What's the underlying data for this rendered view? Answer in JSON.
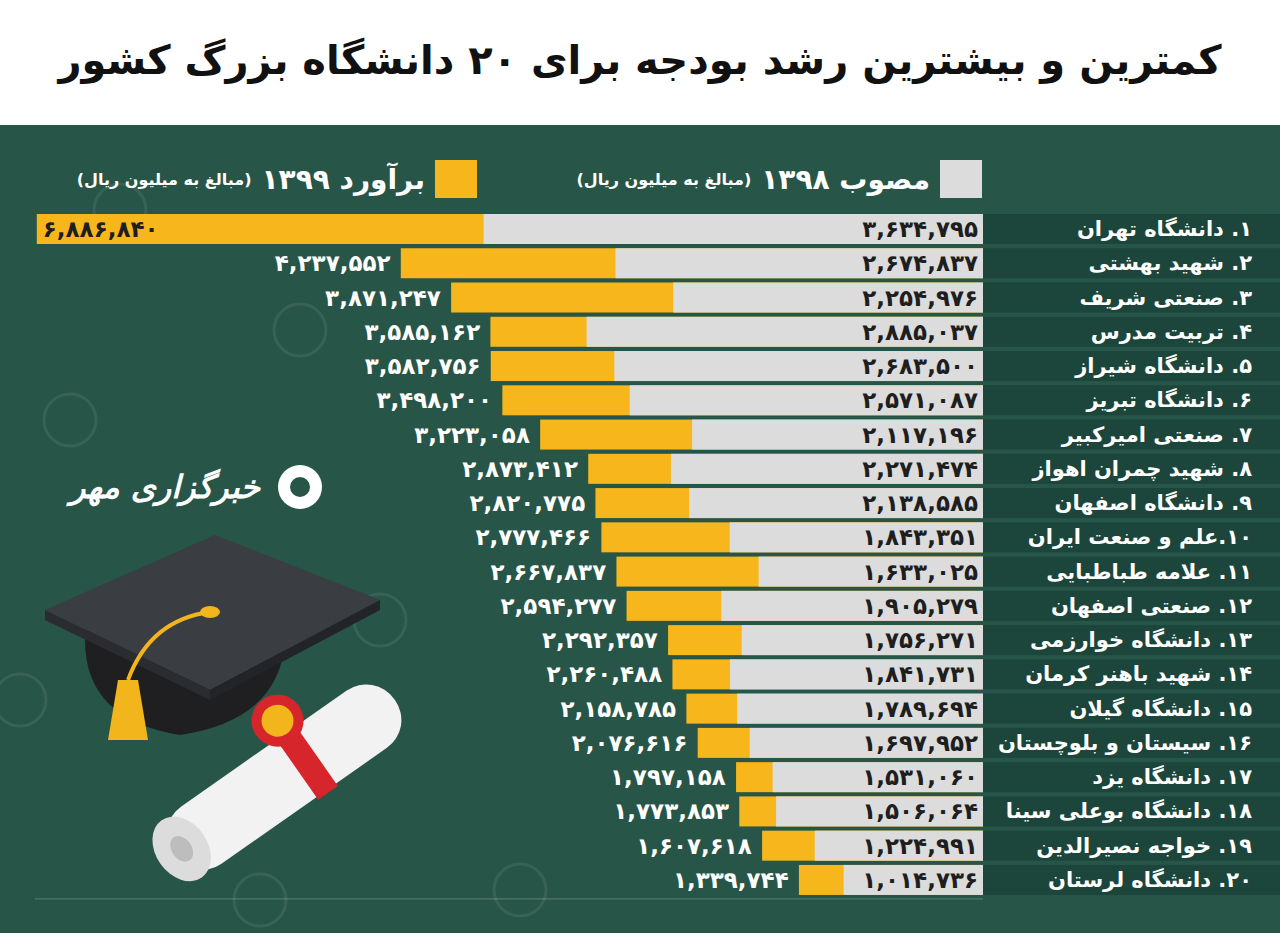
{
  "chart_data": {
    "type": "bar",
    "title": "کمترین و بیشترین رشد بودجه برای ۲۰ دانشگاه بزرگ کشور",
    "annotations": [
      "(مبالغ به میلیون ریال)",
      "خبرگزاری مهر"
    ],
    "orientation": "horizontal",
    "stacked": false,
    "data_labels": true,
    "tick_labels": false,
    "grid": false,
    "legend": "top",
    "xlim": [
      0,
      6900000
    ],
    "categories": [
      "۱. دانشگاه تهران",
      "۲. شهید بهشتی",
      "۳. صنعتی شریف",
      "۴. تربیت مدرس",
      "۵. دانشگاه شیراز",
      "۶. دانشگاه تبریز",
      "۷. صنعتی امیرکبیر",
      "۸. شهید چمران اهواز",
      "۹. دانشگاه اصفهان",
      "۱۰.علم و صنعت ایران",
      "۱۱. علامه طباطبایی",
      "۱۲. صنعتی اصفهان",
      "۱۳. دانشگاه خوارزمی",
      "۱۴. شهید باهنر کرمان",
      "۱۵. دانشگاه گیلان",
      "۱۶. سیستان و بلوچستان",
      "۱۷. دانشگاه یزد",
      "۱۸. دانشگاه بوعلی سینا",
      "۱۹. خواجه نصیرالدین",
      "۲۰. دانشگاه لرستان"
    ],
    "series": [
      {
        "name": "مصوب ۱۳۹۸",
        "color": "#dcdcdc",
        "values": [
          3634795,
          2674837,
          2254976,
          2885037,
          2683500,
          2571087,
          2117196,
          2271474,
          2138585,
          1843351,
          1633025,
          1905279,
          1756271,
          1841731,
          1789694,
          1697952,
          1531060,
          1506064,
          1224991,
          1014736
        ],
        "value_labels": [
          "۳,۶۳۴,۷۹۵",
          "۲,۶۷۴,۸۳۷",
          "۲,۲۵۴,۹۷۶",
          "۲,۸۸۵,۰۳۷",
          "۲,۶۸۳,۵۰۰",
          "۲,۵۷۱,۰۸۷",
          "۲,۱۱۷,۱۹۶",
          "۲,۲۷۱,۴۷۴",
          "۲,۱۳۸,۵۸۵",
          "۱,۸۴۳,۳۵۱",
          "۱,۶۳۳,۰۲۵",
          "۱,۹۰۵,۲۷۹",
          "۱,۷۵۶,۲۷۱",
          "۱,۸۴۱,۷۳۱",
          "۱,۷۸۹,۶۹۴",
          "۱,۶۹۷,۹۵۲",
          "۱,۵۳۱,۰۶۰",
          "۱,۵۰۶,۰۶۴",
          "۱,۲۲۴,۹۹۱",
          "۱,۰۱۴,۷۳۶"
        ]
      },
      {
        "name": "برآورد ۱۳۹۹",
        "color": "#f7b71c",
        "values": [
          6886840,
          4237552,
          3871247,
          3585162,
          3582756,
          3498200,
          3223058,
          2873412,
          2820775,
          2777466,
          2667837,
          2594277,
          2292357,
          2260488,
          2158785,
          2076616,
          1797158,
          1773853,
          1607618,
          1339744
        ],
        "value_labels": [
          "۶,۸۸۶,۸۴۰",
          "۴,۲۳۷,۵۵۲",
          "۳,۸۷۱,۲۴۷",
          "۳,۵۸۵,۱۶۲",
          "۳,۵۸۲,۷۵۶",
          "۳,۴۹۸,۲۰۰",
          "۳,۲۲۳,۰۵۸",
          "۲,۸۷۳,۴۱۲",
          "۲,۸۲۰,۷۷۵",
          "۲,۷۷۷,۴۶۶",
          "۲,۶۶۷,۸۳۷",
          "۲,۵۹۴,۲۷۷",
          "۲,۲۹۲,۳۵۷",
          "۲,۲۶۰,۴۸۸",
          "۲,۱۵۸,۷۸۵",
          "۲,۰۷۶,۶۱۶",
          "۱,۷۹۷,۱۵۸",
          "۱,۷۷۳,۸۵۳",
          "۱,۶۰۷,۶۱۸",
          "۱,۳۳۹,۷۴۴"
        ]
      }
    ]
  }
}
